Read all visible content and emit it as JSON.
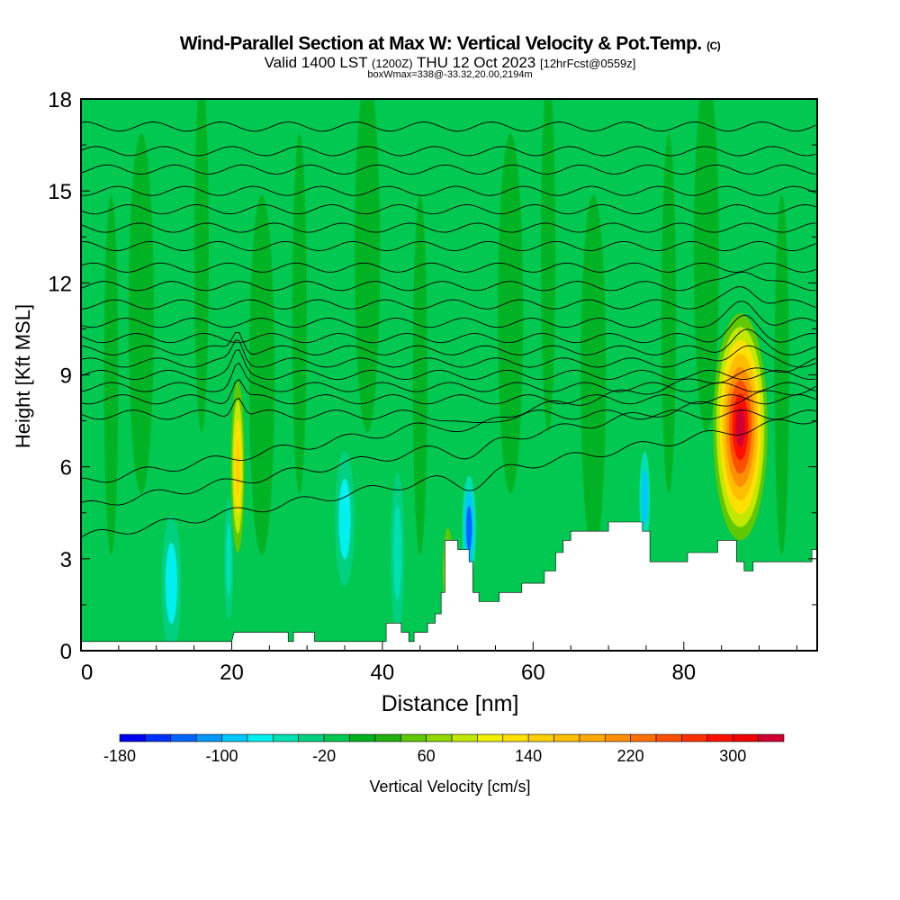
{
  "chart_data": {
    "type": "heatmap",
    "title": "Wind-Parallel Section at Max W: Vertical Velocity & Pot.Temp.",
    "title_mark": "(C)",
    "subtitle_main": "Valid 1400 LST",
    "subtitle_utc": "(1200Z)",
    "subtitle_date": "THU 12 Oct 2023",
    "subtitle_fcst": "[12hrFcst@0559z]",
    "subtitle2": "boxWmax=338@-33.32,20.00,2194m",
    "xlabel": "Distance [nm]",
    "ylabel": "Height [Kft MSL]",
    "xlim": [
      0,
      97.7
    ],
    "ylim": [
      0,
      18
    ],
    "xticks": [
      "0",
      "20",
      "40",
      "60",
      "80"
    ],
    "xtick_values": [
      0,
      20,
      40,
      60,
      80
    ],
    "yticks": [
      "0",
      "3",
      "6",
      "9",
      "12",
      "15",
      "18"
    ],
    "ytick_values": [
      0,
      3,
      6,
      9,
      12,
      15,
      18
    ],
    "background_value": -10,
    "features": [
      {
        "x": 12,
        "h": 2.2,
        "rx": 1.3,
        "rh": 2.2,
        "levels": [
          -40,
          -80
        ]
      },
      {
        "x": 19.6,
        "h": 3,
        "rx": 0.6,
        "rh": 2,
        "levels": [
          -40,
          -60
        ]
      },
      {
        "x": 35,
        "h": 4.3,
        "rx": 1.3,
        "rh": 2.2,
        "levels": [
          -40,
          -80
        ]
      },
      {
        "x": 42,
        "h": 3.2,
        "rx": 0.9,
        "rh": 2.6,
        "levels": [
          -40,
          -60
        ]
      },
      {
        "x": 51.5,
        "h": 4,
        "rx": 0.9,
        "rh": 1.7,
        "levels": [
          -60,
          -100,
          -140
        ]
      },
      {
        "x": 74.8,
        "h": 5,
        "rx": 0.7,
        "rh": 1.5,
        "levels": [
          -60,
          -100
        ]
      },
      {
        "x": 48.7,
        "h": 2.6,
        "rx": 0.7,
        "rh": 1.4,
        "levels": [
          40,
          80,
          120
        ]
      },
      {
        "x": 20.8,
        "h": 6,
        "rx": 0.9,
        "rh": 2.8,
        "levels": [
          40,
          80,
          120,
          140
        ]
      },
      {
        "x": 87.5,
        "h": 7.3,
        "rx": 3.6,
        "rh": 3.7,
        "levels": [
          40,
          80,
          120,
          160,
          200,
          240,
          280,
          320
        ]
      }
    ],
    "streaks": [
      4,
      8,
      16,
      24,
      29,
      38,
      45,
      57,
      62,
      68,
      78,
      83,
      93
    ],
    "terrain": [
      [
        0,
        0.3
      ],
      [
        20,
        0.3
      ],
      [
        20.3,
        0.6
      ],
      [
        27.5,
        0.6
      ],
      [
        27.5,
        0.3
      ],
      [
        28.2,
        0.3
      ],
      [
        28.2,
        0.6
      ],
      [
        31,
        0.6
      ],
      [
        31,
        0.3
      ],
      [
        40.5,
        0.3
      ],
      [
        40.5,
        0.9
      ],
      [
        42.5,
        0.9
      ],
      [
        42.5,
        0.6
      ],
      [
        43.5,
        0.6
      ],
      [
        43.5,
        0.3
      ],
      [
        44.2,
        0.3
      ],
      [
        44.2,
        0.6
      ],
      [
        46,
        0.6
      ],
      [
        46,
        0.9
      ],
      [
        47,
        0.9
      ],
      [
        47,
        1.2
      ],
      [
        47.8,
        1.2
      ],
      [
        47.8,
        1.9
      ],
      [
        48.3,
        1.9
      ],
      [
        48.3,
        3.6
      ],
      [
        50,
        3.6
      ],
      [
        50,
        3.3
      ],
      [
        51.5,
        3.3
      ],
      [
        51.5,
        2.9
      ],
      [
        52,
        2.9
      ],
      [
        52,
        1.9
      ],
      [
        52.8,
        1.9
      ],
      [
        52.8,
        1.6
      ],
      [
        55.5,
        1.6
      ],
      [
        55.5,
        1.9
      ],
      [
        58.5,
        1.9
      ],
      [
        58.5,
        2.2
      ],
      [
        61.5,
        2.2
      ],
      [
        61.5,
        2.6
      ],
      [
        63,
        2.6
      ],
      [
        63,
        3.2
      ],
      [
        64,
        3.2
      ],
      [
        64,
        3.6
      ],
      [
        65,
        3.6
      ],
      [
        65,
        3.9
      ],
      [
        70,
        3.9
      ],
      [
        70,
        4.2
      ],
      [
        74.5,
        4.2
      ],
      [
        74.5,
        3.9
      ],
      [
        75.5,
        3.9
      ],
      [
        75.5,
        2.9
      ],
      [
        80.5,
        2.9
      ],
      [
        80.5,
        3.2
      ],
      [
        84.5,
        3.2
      ],
      [
        84.5,
        3.6
      ],
      [
        87,
        3.6
      ],
      [
        87,
        2.9
      ],
      [
        88,
        2.9
      ],
      [
        88,
        2.6
      ],
      [
        89.2,
        2.6
      ],
      [
        89.2,
        2.9
      ],
      [
        97,
        2.9
      ],
      [
        97,
        3.3
      ],
      [
        97.7,
        3.3
      ]
    ],
    "isentrope_bases": [
      5.3,
      6.3,
      7.1,
      7.7,
      8.2,
      8.6,
      9.0,
      9.4,
      9.8,
      10.2,
      10.7,
      11.3,
      11.9,
      12.5,
      13.2,
      13.8,
      14.4,
      15.0,
      15.7,
      16.3,
      17.1
    ],
    "colorbar": {
      "label": "Vertical Velocity [cm/s]",
      "min": -180,
      "step": 20,
      "tick_labels": [
        "-180",
        "-100",
        "-20",
        "60",
        "140",
        "220",
        "300"
      ],
      "tick_values": [
        -180,
        -100,
        -20,
        60,
        140,
        220,
        300
      ],
      "colors": [
        "#0000f0",
        "#0030ff",
        "#0064ff",
        "#0098ff",
        "#00c8ff",
        "#00f0f0",
        "#00e0b0",
        "#00d080",
        "#00c850",
        "#00b020",
        "#20b010",
        "#60c800",
        "#90d800",
        "#c0e800",
        "#f0f000",
        "#ffe000",
        "#ffd000",
        "#ffbe00",
        "#ffaa00",
        "#ff9000",
        "#ff7000",
        "#ff5000",
        "#ff3000",
        "#ff1000",
        "#f00000",
        "#d00030"
      ]
    }
  }
}
